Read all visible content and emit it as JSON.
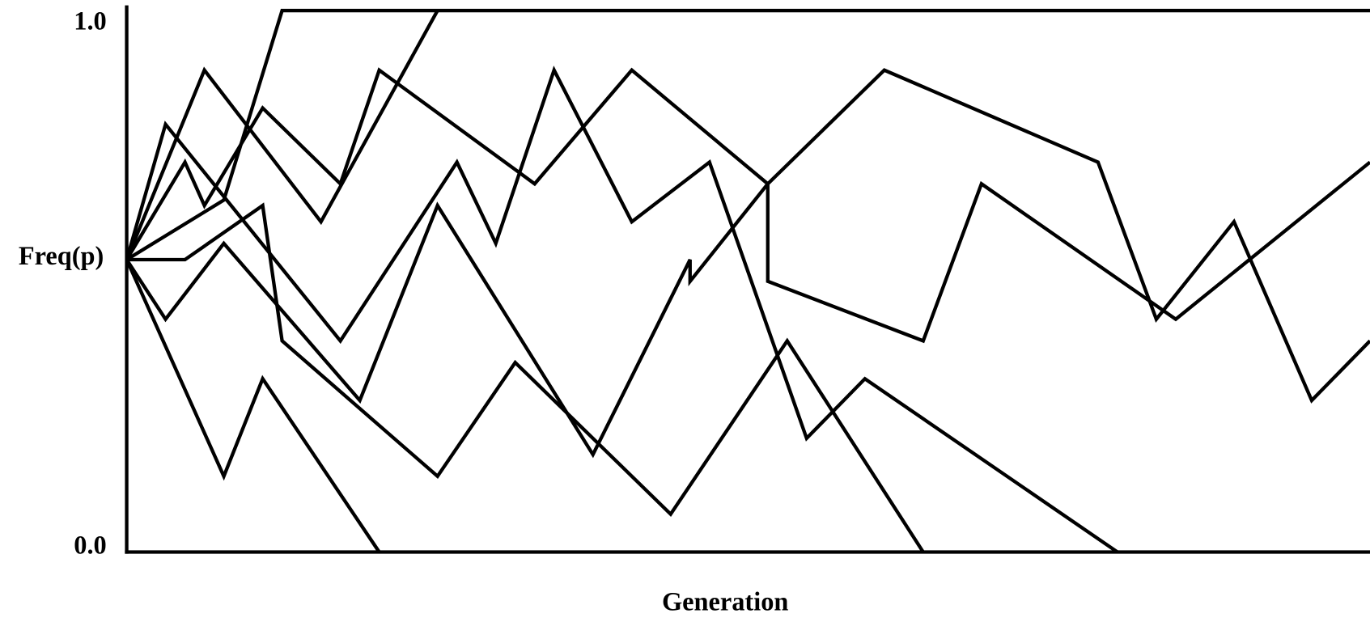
{
  "chart_data": {
    "type": "line",
    "x_label": "Generation",
    "y_label": "Freq(p)",
    "xlim": [
      0,
      64
    ],
    "ylim": [
      0,
      1
    ],
    "yticks": [
      {
        "value": 0,
        "label": "0.0"
      },
      {
        "value": 1,
        "label": "1.0"
      }
    ],
    "grid": false,
    "series": [
      {
        "color": "#000000",
        "x": [
          0,
          5,
          8,
          64
        ],
        "values": [
          0.54,
          0.65,
          1,
          1
        ]
      },
      {
        "color": "#000000",
        "x": [
          0,
          3,
          4,
          7,
          11,
          13,
          21,
          26,
          33,
          33,
          41,
          44,
          54,
          64
        ],
        "values": [
          0.54,
          0.72,
          0.64,
          0.82,
          0.68,
          0.89,
          0.68,
          0.89,
          0.68,
          0.5,
          0.39,
          0.68,
          0.43,
          0.72
        ]
      },
      {
        "color": "#000000",
        "x": [
          0,
          4,
          10,
          16
        ],
        "values": [
          0.54,
          0.89,
          0.61,
          1
        ]
      },
      {
        "color": "#000000",
        "x": [
          0,
          2,
          11,
          17,
          19,
          22,
          26,
          30,
          35,
          38,
          51
        ],
        "values": [
          0.54,
          0.79,
          0.39,
          0.72,
          0.57,
          0.89,
          0.61,
          0.72,
          0.21,
          0.32,
          0
        ]
      },
      {
        "color": "#000000",
        "x": [
          0,
          3,
          7,
          8,
          16,
          20,
          28,
          34,
          41
        ],
        "values": [
          0.54,
          0.54,
          0.64,
          0.39,
          0.14,
          0.35,
          0.07,
          0.39,
          0
        ]
      },
      {
        "color": "#000000",
        "x": [
          0,
          2,
          5,
          12,
          16,
          24,
          29,
          29,
          33,
          39,
          50,
          53,
          57,
          61,
          64
        ],
        "values": [
          0.54,
          0.43,
          0.57,
          0.28,
          0.64,
          0.18,
          0.54,
          0.5,
          0.68,
          0.89,
          0.72,
          0.43,
          0.61,
          0.28,
          0.39
        ]
      },
      {
        "color": "#000000",
        "x": [
          0,
          5,
          7,
          13
        ],
        "values": [
          0.54,
          0.14,
          0.32,
          0
        ]
      }
    ]
  }
}
